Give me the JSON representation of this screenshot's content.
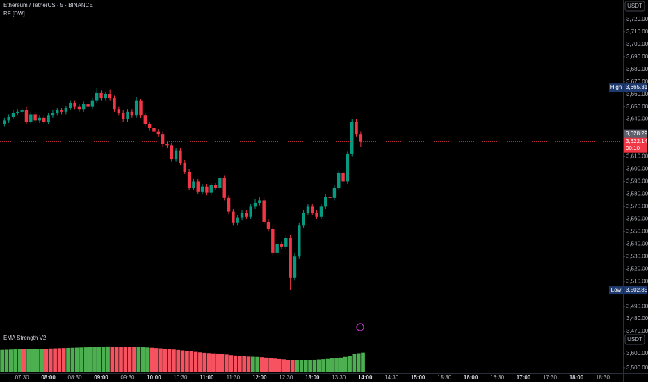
{
  "chart_data": [
    {
      "type": "candlestick",
      "title": "Ethereum / TetherUS · 5 · BINANCE",
      "subtitle": "RF [DW]",
      "currency": "USDT",
      "x": [
        "07:10",
        "07:15",
        "07:20",
        "07:25",
        "07:30",
        "07:35",
        "07:40",
        "07:45",
        "07:50",
        "07:55",
        "08:00",
        "08:05",
        "08:10",
        "08:15",
        "08:20",
        "08:25",
        "08:30",
        "08:35",
        "08:40",
        "08:45",
        "08:50",
        "08:55",
        "09:00",
        "09:05",
        "09:10",
        "09:15",
        "09:20",
        "09:25",
        "09:30",
        "09:35",
        "09:40",
        "09:45",
        "09:50",
        "09:55",
        "10:00",
        "10:05",
        "10:10",
        "10:15",
        "10:20",
        "10:25",
        "10:30",
        "10:35",
        "10:40",
        "10:45",
        "10:50",
        "10:55",
        "11:00",
        "11:05",
        "11:10",
        "11:15",
        "11:20",
        "11:25",
        "11:30",
        "11:35",
        "11:40",
        "11:45",
        "11:50",
        "11:55",
        "12:00",
        "12:05",
        "12:10",
        "12:15",
        "12:20",
        "12:25",
        "12:30",
        "12:35",
        "12:40",
        "12:45",
        "12:50",
        "12:55",
        "13:00",
        "13:05",
        "13:10",
        "13:15",
        "13:20",
        "13:25",
        "13:30",
        "13:35",
        "13:40",
        "13:45",
        "13:50",
        "13:55"
      ],
      "open": [
        3636,
        3639,
        3642,
        3645,
        3646,
        3647,
        3638,
        3644,
        3639,
        3641,
        3638,
        3643,
        3645,
        3647,
        3646,
        3649,
        3653,
        3650,
        3648,
        3652,
        3650,
        3655,
        3661,
        3657,
        3660,
        3657,
        3648,
        3645,
        3640,
        3646,
        3643,
        3655,
        3643,
        3636,
        3633,
        3630,
        3628,
        3620,
        3619,
        3608,
        3615,
        3605,
        3598,
        3585,
        3590,
        3582,
        3586,
        3581,
        3587,
        3585,
        3593,
        3577,
        3566,
        3557,
        3561,
        3565,
        3562,
        3570,
        3573,
        3575,
        3558,
        3552,
        3533,
        3540,
        3538,
        3545,
        3513,
        3530,
        3555,
        3565,
        3570,
        3565,
        3562,
        3570,
        3578,
        3577,
        3585,
        3597,
        3590,
        3612,
        3638,
        3628
      ],
      "high": [
        3641,
        3644,
        3647,
        3648,
        3649,
        3650,
        3646,
        3646,
        3643,
        3643,
        3645,
        3647,
        3649,
        3649,
        3651,
        3655,
        3655,
        3652,
        3654,
        3654,
        3657,
        3665.31,
        3663,
        3662,
        3664,
        3659,
        3650,
        3647,
        3648,
        3648,
        3658,
        3656,
        3645,
        3638,
        3635,
        3632,
        3630,
        3622,
        3621,
        3617,
        3617,
        3607,
        3600,
        3592,
        3592,
        3588,
        3588,
        3589,
        3589,
        3595,
        3595,
        3579,
        3568,
        3563,
        3567,
        3567,
        3572,
        3576,
        3578,
        3577,
        3560,
        3554,
        3542,
        3542,
        3547,
        3547,
        3533,
        3557,
        3567,
        3572,
        3572,
        3567,
        3572,
        3580,
        3580,
        3587,
        3599,
        3599,
        3614,
        3640,
        3640,
        3630
      ],
      "low": [
        3634,
        3637,
        3640,
        3643,
        3644,
        3636,
        3636,
        3637,
        3637,
        3636,
        3636,
        3641,
        3643,
        3644,
        3644,
        3647,
        3648,
        3646,
        3646,
        3648,
        3648,
        3653,
        3655,
        3655,
        3655,
        3646,
        3643,
        3638,
        3638,
        3641,
        3641,
        3641,
        3634,
        3631,
        3628,
        3626,
        3618,
        3617,
        3606,
        3606,
        3603,
        3596,
        3583,
        3583,
        3580,
        3580,
        3579,
        3579,
        3583,
        3583,
        3575,
        3564,
        3555,
        3555,
        3559,
        3560,
        3560,
        3568,
        3571,
        3556,
        3550,
        3531,
        3531,
        3536,
        3536,
        3502.85,
        3511,
        3528,
        3553,
        3563,
        3563,
        3560,
        3560,
        3568,
        3575,
        3575,
        3583,
        3588,
        3588,
        3610,
        3626,
        3618
      ],
      "close": [
        3639,
        3642,
        3645,
        3646,
        3647,
        3638,
        3644,
        3639,
        3641,
        3638,
        3643,
        3645,
        3647,
        3646,
        3649,
        3653,
        3650,
        3648,
        3652,
        3650,
        3655,
        3661,
        3657,
        3660,
        3657,
        3648,
        3645,
        3640,
        3646,
        3643,
        3655,
        3643,
        3636,
        3633,
        3630,
        3628,
        3620,
        3619,
        3608,
        3615,
        3605,
        3598,
        3585,
        3590,
        3582,
        3586,
        3581,
        3587,
        3585,
        3593,
        3577,
        3566,
        3557,
        3561,
        3565,
        3562,
        3570,
        3573,
        3575,
        3558,
        3552,
        3533,
        3540,
        3538,
        3545,
        3513,
        3530,
        3555,
        3565,
        3570,
        3565,
        3562,
        3570,
        3578,
        3577,
        3585,
        3597,
        3590,
        3612,
        3638,
        3628,
        3622.14
      ],
      "up_color": "#089981",
      "down_color": "#f23645",
      "xlim": [
        "07:05",
        "18:53"
      ],
      "xticks": [
        "07:30",
        "08:00",
        "08:30",
        "09:00",
        "09:30",
        "10:00",
        "10:30",
        "11:00",
        "11:30",
        "12:00",
        "12:30",
        "13:00",
        "13:30",
        "14:00",
        "14:30",
        "15:00",
        "15:30",
        "16:00",
        "16:30",
        "17:00",
        "17:30",
        "18:00",
        "18:30"
      ],
      "ylim": [
        3469.5,
        3735.5
      ],
      "yticks": [
        {
          "value": 3720,
          "label": "3,720.00"
        },
        {
          "value": 3710,
          "label": "3,710.00"
        },
        {
          "value": 3700,
          "label": "3,700.00"
        },
        {
          "value": 3690,
          "label": "3,690.00"
        },
        {
          "value": 3680,
          "label": "3,680.00"
        },
        {
          "value": 3670,
          "label": "3,670.00"
        },
        {
          "value": 3660,
          "label": "3,660.00"
        },
        {
          "value": 3650,
          "label": "3,650.00"
        },
        {
          "value": 3640,
          "label": "3,640.00"
        },
        {
          "value": 3610,
          "label": "3,610.00"
        },
        {
          "value": 3600,
          "label": "3,600.00"
        },
        {
          "value": 3590,
          "label": "3,590.00"
        },
        {
          "value": 3580,
          "label": "3,580.00"
        },
        {
          "value": 3570,
          "label": "3,570.00"
        },
        {
          "value": 3560,
          "label": "3,560.00"
        },
        {
          "value": 3550,
          "label": "3,550.00"
        },
        {
          "value": 3540,
          "label": "3,540.00"
        },
        {
          "value": 3530,
          "label": "3,530.00"
        },
        {
          "value": 3520,
          "label": "3,520.00"
        },
        {
          "value": 3510,
          "label": "3,510.00"
        },
        {
          "value": 3490,
          "label": "3,490.00"
        },
        {
          "value": 3480,
          "label": "3,480.00"
        },
        {
          "value": 3470,
          "label": "3,470.00"
        }
      ],
      "markers": [
        {
          "name": "High",
          "value": 3665.31,
          "value_label": "3,665.31",
          "color": "#1e3a6e"
        },
        {
          "value": 3628.29,
          "value_label": "3,628.29",
          "color": "#5d606b"
        },
        {
          "value": 3622.14,
          "value_label": "3,622.14",
          "countdown": "00:10",
          "color": "#f23645"
        },
        {
          "name": "Low",
          "value": 3502.85,
          "value_label": "3,502.85",
          "color": "#1e3a6e"
        }
      ]
    },
    {
      "type": "bar",
      "title": "EMA Strength V2",
      "currency": "USDT",
      "values": [
        3625,
        3626,
        3627,
        3628,
        3630,
        3630,
        3631,
        3631,
        3632,
        3632,
        3633,
        3634,
        3635,
        3636,
        3637,
        3638,
        3639,
        3640,
        3641,
        3642,
        3643,
        3645,
        3646,
        3647,
        3648,
        3647,
        3646,
        3645,
        3645,
        3645,
        3646,
        3645,
        3643,
        3641,
        3639,
        3637,
        3635,
        3632,
        3629,
        3627,
        3624,
        3621,
        3617,
        3614,
        3611,
        3608,
        3605,
        3603,
        3601,
        3600,
        3597,
        3593,
        3589,
        3586,
        3583,
        3581,
        3579,
        3578,
        3577,
        3575,
        3572,
        3568,
        3565,
        3562,
        3560,
        3555,
        3552,
        3552,
        3553,
        3555,
        3556,
        3557,
        3559,
        3561,
        3563,
        3566,
        3569,
        3572,
        3577,
        3585,
        3595,
        3602,
        3606
      ],
      "colors": [
        "#4caf50",
        "#4caf50",
        "#4caf50",
        "#4caf50",
        "#4caf50",
        "#f7525f",
        "#4caf50",
        "#4caf50",
        "#4caf50",
        "#4caf50",
        "#f7525f",
        "#f7525f",
        "#f7525f",
        "#f7525f",
        "#f7525f",
        "#4caf50",
        "#4caf50",
        "#4caf50",
        "#4caf50",
        "#4caf50",
        "#4caf50",
        "#4caf50",
        "#4caf50",
        "#4caf50",
        "#4caf50",
        "#f7525f",
        "#f7525f",
        "#f7525f",
        "#f7525f",
        "#f7525f",
        "#f7525f",
        "#4caf50",
        "#4caf50",
        "#4caf50",
        "#f7525f",
        "#f7525f",
        "#f7525f",
        "#f7525f",
        "#f7525f",
        "#f7525f",
        "#f7525f",
        "#f7525f",
        "#f7525f",
        "#f7525f",
        "#f7525f",
        "#f7525f",
        "#f7525f",
        "#f7525f",
        "#f7525f",
        "#f7525f",
        "#f7525f",
        "#f7525f",
        "#f7525f",
        "#f7525f",
        "#f7525f",
        "#f7525f",
        "#f7525f",
        "#4caf50",
        "#4caf50",
        "#f7525f",
        "#f7525f",
        "#f7525f",
        "#f7525f",
        "#f7525f",
        "#f7525f",
        "#f7525f",
        "#f7525f",
        "#4caf50",
        "#4caf50",
        "#4caf50",
        "#4caf50",
        "#4caf50",
        "#4caf50",
        "#4caf50",
        "#4caf50",
        "#4caf50",
        "#4caf50",
        "#4caf50",
        "#4caf50",
        "#4caf50",
        "#4caf50",
        "#4caf50",
        "#4caf50"
      ],
      "ylim": [
        3471,
        3733
      ],
      "yticks": [
        {
          "value": 3600,
          "label": "3,600.00"
        },
        {
          "value": 3500,
          "label": "3,500.00"
        }
      ]
    }
  ]
}
